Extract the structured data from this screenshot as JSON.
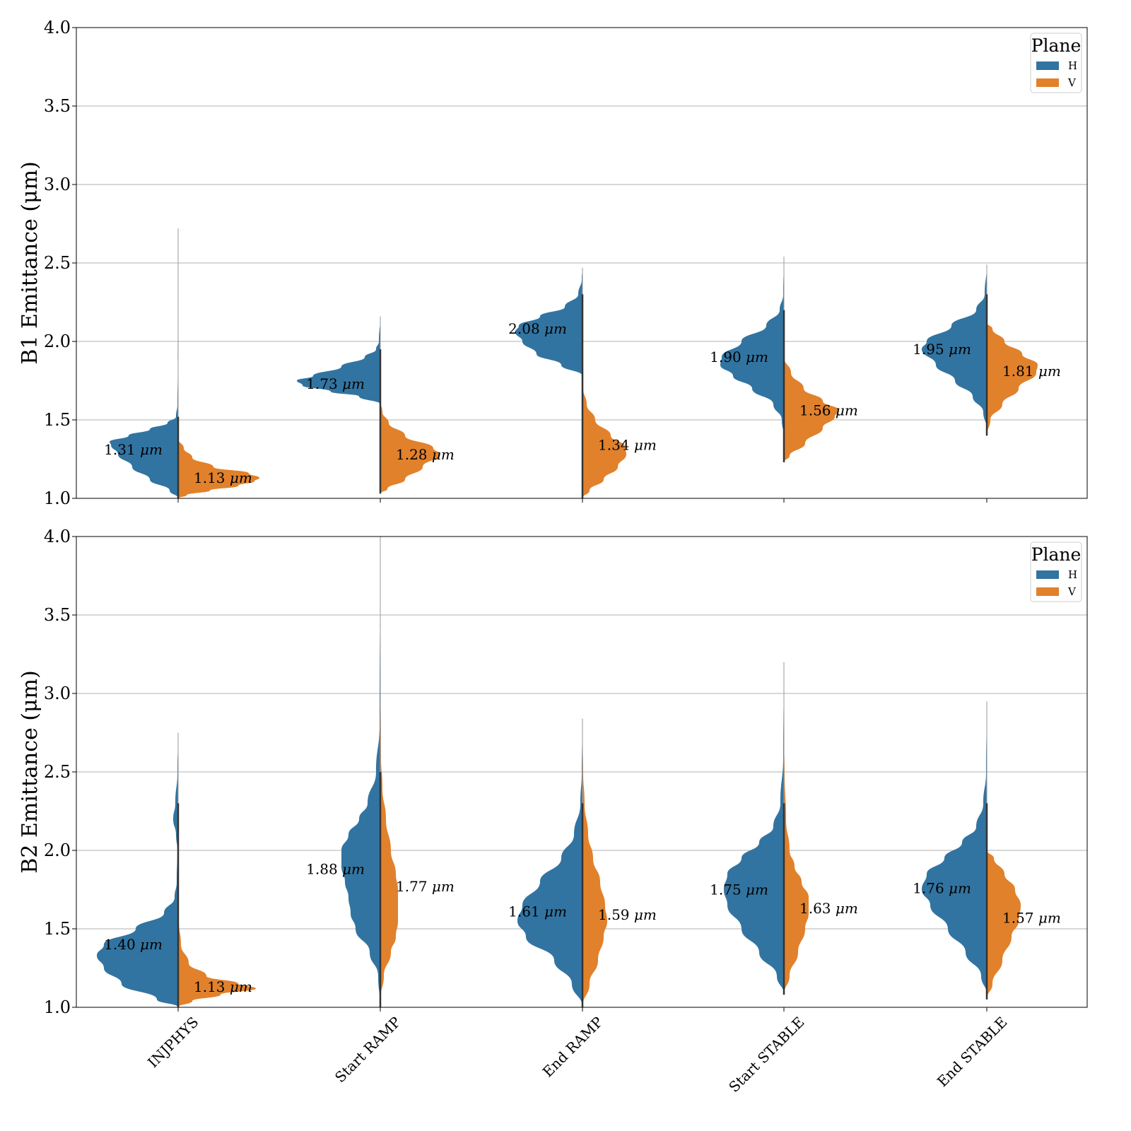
{
  "chart_data": [
    {
      "type": "violin",
      "ylabel": "B1 Emittance (μm)",
      "ylim": [
        1.0,
        4.0
      ],
      "yticks": [
        "1.0",
        "1.5",
        "2.0",
        "2.5",
        "3.0",
        "3.5",
        "4.0"
      ],
      "categories": [
        "INJPHYS",
        "Start RAMP",
        "End RAMP",
        "Start STABLE",
        "End STABLE"
      ],
      "grid": "horizontal",
      "legend": {
        "title": "Plane",
        "placement": "top-right",
        "entries": [
          "H",
          "V"
        ]
      },
      "series": [
        {
          "name": "H",
          "color": "#3274a1",
          "median": [
            1.31,
            1.73,
            2.08,
            1.9,
            1.95
          ],
          "labels": [
            "1.31",
            "1.73",
            "2.08",
            "1.90",
            "1.95"
          ],
          "ranges": [
            [
              1.0,
              2.72
            ],
            [
              1.6,
              2.16
            ],
            [
              1.78,
              2.47
            ],
            [
              1.39,
              2.54
            ],
            [
              1.44,
              2.49
            ]
          ]
        },
        {
          "name": "V",
          "color": "#e1812c",
          "median": [
            1.13,
            1.28,
            1.34,
            1.56,
            1.81
          ],
          "labels": [
            "1.13",
            "1.28",
            "1.34",
            "1.56",
            "1.81"
          ],
          "ranges": [
            [
              1.0,
              1.38
            ],
            [
              1.03,
              1.62
            ],
            [
              1.0,
              1.73
            ],
            [
              1.23,
              1.9
            ],
            [
              1.4,
              2.12
            ]
          ]
        }
      ],
      "unit": "μm"
    },
    {
      "type": "violin",
      "ylabel": "B2 Emittance (μm)",
      "ylim": [
        1.0,
        4.0
      ],
      "yticks": [
        "1.0",
        "1.5",
        "2.0",
        "2.5",
        "3.0",
        "3.5",
        "4.0"
      ],
      "categories": [
        "INJPHYS",
        "Start RAMP",
        "End RAMP",
        "Start STABLE",
        "End STABLE"
      ],
      "grid": "horizontal",
      "legend": {
        "title": "Plane",
        "placement": "top-right",
        "entries": [
          "H",
          "V"
        ]
      },
      "series": [
        {
          "name": "H",
          "color": "#3274a1",
          "median": [
            1.4,
            1.88,
            1.61,
            1.75,
            1.76
          ],
          "labels": [
            "1.40",
            "1.88",
            "1.61",
            "1.75",
            "1.76"
          ],
          "ranges": [
            [
              1.0,
              2.75
            ],
            [
              1.0,
              4.0
            ],
            [
              1.0,
              2.84
            ],
            [
              1.08,
              3.2
            ],
            [
              1.08,
              2.95
            ]
          ]
        },
        {
          "name": "V",
          "color": "#e1812c",
          "median": [
            1.13,
            1.77,
            1.59,
            1.63,
            1.57
          ],
          "labels": [
            "1.13",
            "1.77",
            "1.59",
            "1.63",
            "1.57"
          ],
          "ranges": [
            [
              1.0,
              1.75
            ],
            [
              1.05,
              3.31
            ],
            [
              1.0,
              2.72
            ],
            [
              1.08,
              2.73
            ],
            [
              1.05,
              2.0
            ]
          ]
        }
      ],
      "unit": "μm"
    }
  ]
}
